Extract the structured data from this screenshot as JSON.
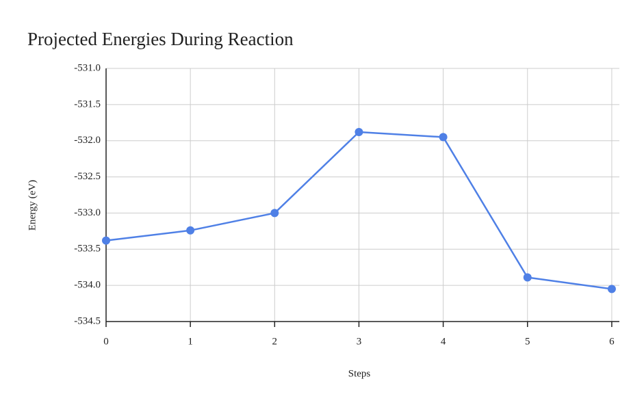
{
  "chart_data": {
    "type": "line",
    "title": "Projected Energies During Reaction",
    "x_label": "Steps",
    "y_label": "Energy (eV)",
    "x": [
      0,
      1,
      2,
      3,
      4,
      5,
      6
    ],
    "series": [
      {
        "name": "Energy",
        "color": "#4f80e6",
        "values": [
          -533.38,
          -533.24,
          -533.0,
          -531.88,
          -531.95,
          -533.89,
          -534.05
        ]
      }
    ],
    "xlim": [
      0,
      6.09
    ],
    "xticks": [
      0,
      1,
      2,
      3,
      4,
      5,
      6
    ],
    "ylim": [
      -534.5,
      -531.0
    ],
    "yticks": [
      {
        "value": -534.5,
        "label": "-534.5"
      },
      {
        "value": -534.0,
        "label": "-534.0"
      },
      {
        "value": -533.5,
        "label": "-533.5"
      },
      {
        "value": -533.0,
        "label": "-533.0"
      },
      {
        "value": -532.5,
        "label": "-532.5"
      },
      {
        "value": -532.0,
        "label": "-532.0"
      },
      {
        "value": -531.5,
        "label": "-531.5"
      },
      {
        "value": -531.0,
        "label": "-531.0"
      }
    ],
    "grid": true
  }
}
